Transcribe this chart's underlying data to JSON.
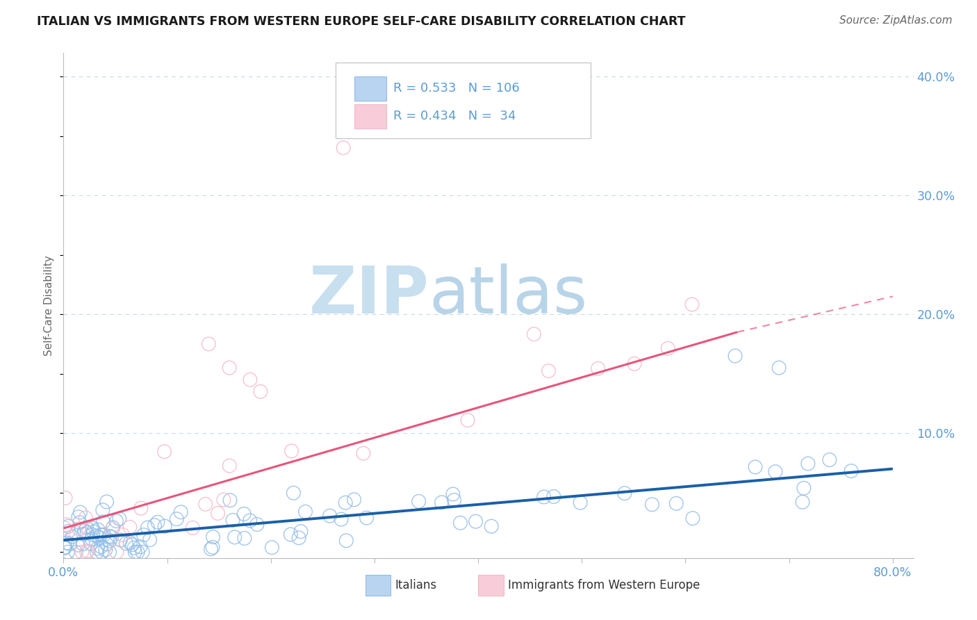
{
  "title": "ITALIAN VS IMMIGRANTS FROM WESTERN EUROPE SELF-CARE DISABILITY CORRELATION CHART",
  "source": "Source: ZipAtlas.com",
  "ylabel": "Self-Care Disability",
  "xlim": [
    0.0,
    0.82
  ],
  "ylim": [
    -0.005,
    0.42
  ],
  "xticks": [
    0.0,
    0.8
  ],
  "xticklabels": [
    "0.0%",
    "80.0%"
  ],
  "yticks_right": [
    0.1,
    0.2,
    0.3,
    0.4
  ],
  "yticklabels_right": [
    "10.0%",
    "20.0%",
    "30.0%",
    "40.0%"
  ],
  "series1_name": "Italians",
  "series1_color": "#92bde8",
  "series1_edge_color": "#92bde8",
  "series1_R": 0.533,
  "series1_N": 106,
  "series2_name": "Immigrants from Western Europe",
  "series2_color": "#f4b8c8",
  "series2_edge_color": "#f4b8c8",
  "series2_R": 0.434,
  "series2_N": 34,
  "trend1_color": "#1a5fa8",
  "trend2_color": "#e8547a",
  "watermark_color": "#dceefb",
  "background_color": "#ffffff",
  "grid_color": "#c8d8e8",
  "title_color": "#1a1a1a",
  "axis_label_color": "#5b9bd5",
  "legend_text_color": "#5b9bd5",
  "legend_border_color": "#c0c0c0"
}
